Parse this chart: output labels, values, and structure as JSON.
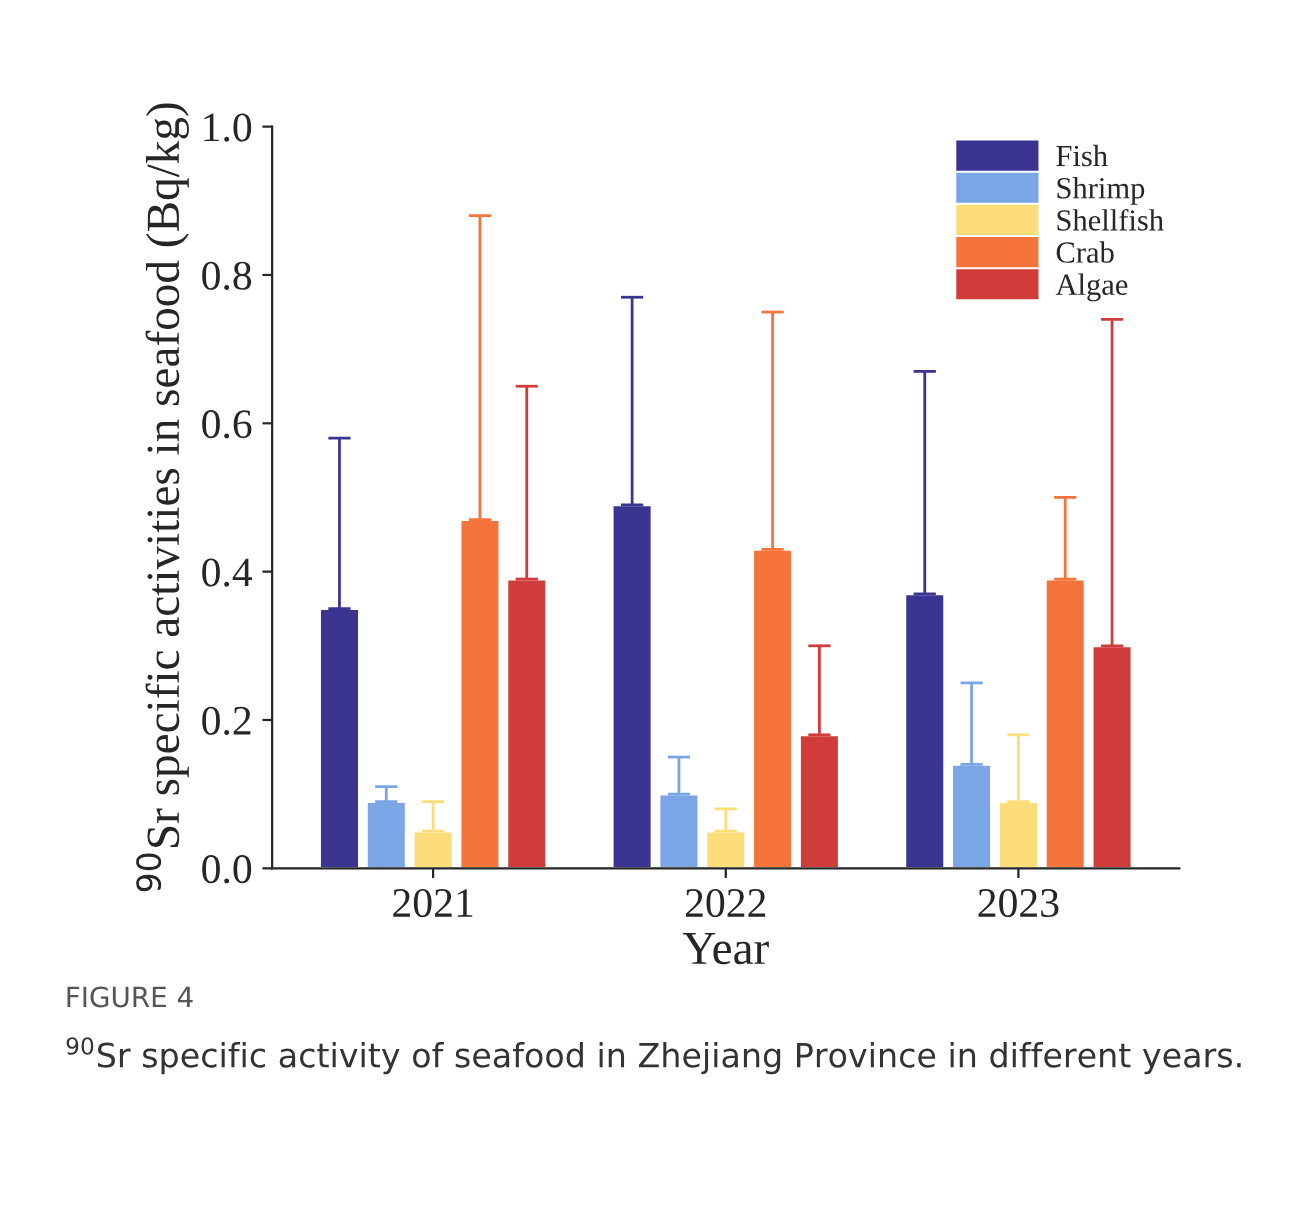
{
  "chart_data": {
    "type": "bar",
    "xlabel": "Year",
    "ylabel": "$^{90}$Sr specific activities in seafood (Bq/kg)",
    "categories": [
      "2021",
      "2022",
      "2023"
    ],
    "series": [
      {
        "name": "Fish",
        "color": "#3b3591",
        "values": [
          0.35,
          0.49,
          0.37
        ],
        "errors": [
          [
            0.35,
            0.58
          ],
          [
            0.49,
            0.77
          ],
          [
            0.37,
            0.67
          ]
        ]
      },
      {
        "name": "Shrimp",
        "color": "#7aa6e6",
        "values": [
          0.09,
          0.1,
          0.14
        ],
        "errors": [
          [
            0.09,
            0.11
          ],
          [
            0.1,
            0.15
          ],
          [
            0.14,
            0.25
          ]
        ]
      },
      {
        "name": "Shellfish",
        "color": "#fddc7a",
        "values": [
          0.05,
          0.05,
          0.09
        ],
        "errors": [
          [
            0.05,
            0.09
          ],
          [
            0.05,
            0.08
          ],
          [
            0.09,
            0.18
          ]
        ]
      },
      {
        "name": "Crab",
        "color": "#f4743b",
        "values": [
          0.47,
          0.43,
          0.39
        ],
        "errors": [
          [
            0.47,
            0.88
          ],
          [
            0.43,
            0.75
          ],
          [
            0.39,
            0.5
          ]
        ]
      },
      {
        "name": "Algae",
        "color": "#d03c3a",
        "values": [
          0.39,
          0.18,
          0.3
        ],
        "errors": [
          [
            0.39,
            0.65
          ],
          [
            0.18,
            0.3
          ],
          [
            0.3,
            0.74
          ]
        ]
      }
    ],
    "ylim": [
      0,
      1.0
    ],
    "yticks": [
      {
        "value": 0,
        "label": "0.0"
      },
      {
        "value": 0.2,
        "label": "0.2"
      },
      {
        "value": 0.4,
        "label": "0.4"
      },
      {
        "value": 0.6,
        "label": "0.6"
      },
      {
        "value": 0.8,
        "label": "0.8"
      },
      {
        "value": 1.0,
        "label": "1.0"
      }
    ],
    "legend": "top right",
    "grid": false,
    "annotations": [
      "FIGURE 4",
      "$^{90}$Sr specific activity of seafood in Zhejiang Province in different years."
    ]
  }
}
